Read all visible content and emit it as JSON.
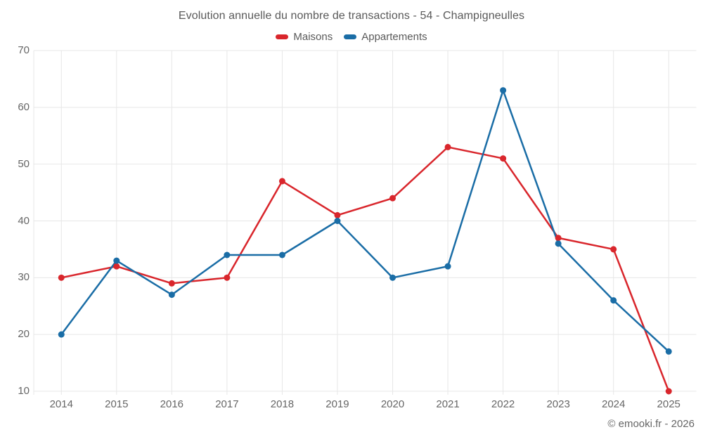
{
  "chart_data": {
    "type": "line",
    "title": "Evolution annuelle du nombre de transactions - 54 - Champigneulles",
    "categories": [
      "2014",
      "2015",
      "2016",
      "2017",
      "2018",
      "2019",
      "2020",
      "2021",
      "2022",
      "2023",
      "2024",
      "2025"
    ],
    "series": [
      {
        "name": "Maisons",
        "color": "#d9262c",
        "values": [
          30,
          32,
          29,
          30,
          47,
          41,
          44,
          53,
          51,
          37,
          35,
          10
        ]
      },
      {
        "name": "Appartements",
        "color": "#1a6da6",
        "values": [
          20,
          33,
          27,
          34,
          34,
          40,
          30,
          32,
          63,
          36,
          26,
          17
        ]
      }
    ],
    "xlabel": "",
    "ylabel": "",
    "ylim": [
      10,
      70
    ],
    "y_ticks": [
      10,
      20,
      30,
      40,
      50,
      60,
      70
    ],
    "grid": true,
    "legend_position": "top"
  },
  "footer": {
    "credit": "© emooki.fr - 2026"
  },
  "colors": {
    "grid": "#e7e7e7",
    "axis_text": "#666666",
    "title_text": "#595959"
  }
}
